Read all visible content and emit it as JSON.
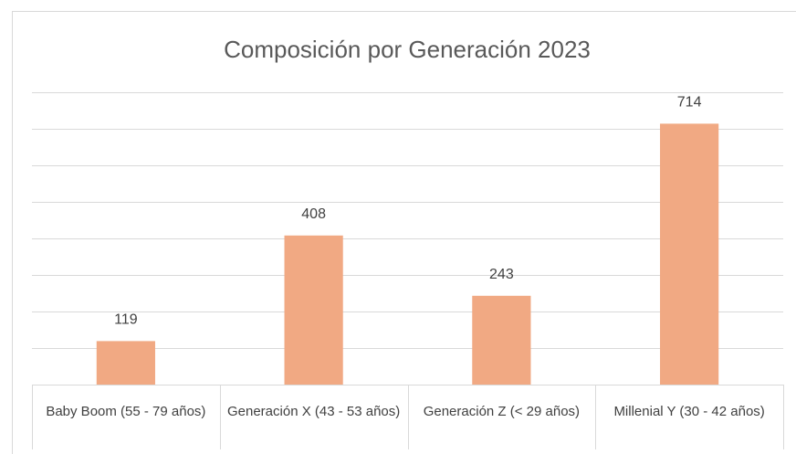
{
  "chart_data": {
    "type": "bar",
    "title": "Composición por Generación 2023",
    "categories": [
      "Baby Boom (55 - 79 años)",
      "Generación X (43 - 53 años)",
      "Generación Z (< 29 años)",
      "Millenial Y (30 - 42 años)"
    ],
    "values": [
      119,
      408,
      243,
      714
    ],
    "color": "#f1a983",
    "ylim": [
      0,
      800
    ],
    "yticks": [
      0,
      100,
      200,
      300,
      400,
      500,
      600,
      700,
      800
    ],
    "grid": true
  }
}
